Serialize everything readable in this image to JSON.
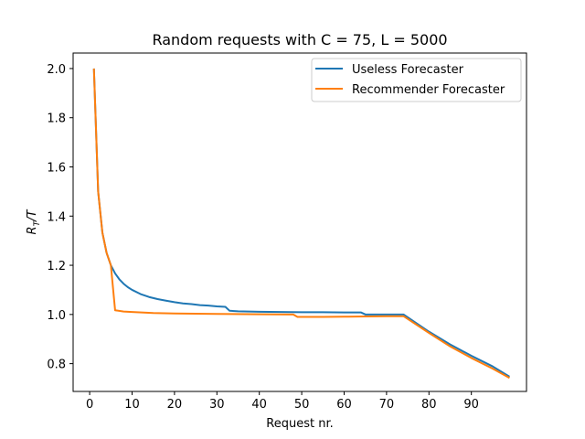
{
  "chart_data": {
    "type": "line",
    "title": "Random requests with C = 75, L = 5000",
    "xlabel": "Request nr.",
    "ylabel_main": "R",
    "ylabel_sub": "T",
    "ylabel_tail": "/T",
    "xlim": [
      -3.9,
      103
    ],
    "ylim": [
      0.687,
      2.063
    ],
    "xticks": [
      0,
      10,
      20,
      30,
      40,
      50,
      60,
      70,
      80,
      90
    ],
    "yticks": [
      0.8,
      1.0,
      1.2,
      1.4,
      1.6,
      1.8,
      2.0
    ],
    "grid": false,
    "legend_position": "top-right",
    "series": [
      {
        "name": "Useless Forecaster",
        "color": "#1f77b4",
        "points": [
          [
            1,
            2.0
          ],
          [
            2,
            1.5
          ],
          [
            3,
            1.333
          ],
          [
            4,
            1.25
          ],
          [
            5,
            1.2
          ],
          [
            6,
            1.167
          ],
          [
            7,
            1.143
          ],
          [
            8,
            1.125
          ],
          [
            9,
            1.111
          ],
          [
            10,
            1.1
          ],
          [
            12,
            1.083
          ],
          [
            14,
            1.071
          ],
          [
            16,
            1.0625
          ],
          [
            18,
            1.056
          ],
          [
            20,
            1.05
          ],
          [
            22,
            1.045
          ],
          [
            24,
            1.042
          ],
          [
            26,
            1.038
          ],
          [
            28,
            1.036
          ],
          [
            30,
            1.033
          ],
          [
            32,
            1.031
          ],
          [
            33,
            1.015
          ],
          [
            35,
            1.013
          ],
          [
            40,
            1.011
          ],
          [
            45,
            1.01
          ],
          [
            50,
            1.009
          ],
          [
            55,
            1.009
          ],
          [
            60,
            1.008
          ],
          [
            64,
            1.008
          ],
          [
            65,
            1.0
          ],
          [
            70,
            1.0
          ],
          [
            74,
            1.0
          ],
          [
            80,
            0.93
          ],
          [
            85,
            0.878
          ],
          [
            90,
            0.832
          ],
          [
            95,
            0.789
          ],
          [
            99,
            0.747
          ]
        ]
      },
      {
        "name": "Recommender Forecaster",
        "color": "#ff7f0e",
        "points": [
          [
            1,
            2.0
          ],
          [
            2,
            1.5
          ],
          [
            3,
            1.333
          ],
          [
            4,
            1.25
          ],
          [
            5,
            1.2
          ],
          [
            6,
            1.017
          ],
          [
            8,
            1.012
          ],
          [
            10,
            1.01
          ],
          [
            15,
            1.006
          ],
          [
            20,
            1.004
          ],
          [
            30,
            1.002
          ],
          [
            40,
            1.001
          ],
          [
            48,
            1.0
          ],
          [
            49,
            0.99
          ],
          [
            55,
            0.99
          ],
          [
            60,
            0.991
          ],
          [
            65,
            0.992
          ],
          [
            70,
            0.993
          ],
          [
            74,
            0.993
          ],
          [
            80,
            0.925
          ],
          [
            85,
            0.87
          ],
          [
            90,
            0.823
          ],
          [
            95,
            0.78
          ],
          [
            99,
            0.742
          ]
        ]
      }
    ]
  }
}
